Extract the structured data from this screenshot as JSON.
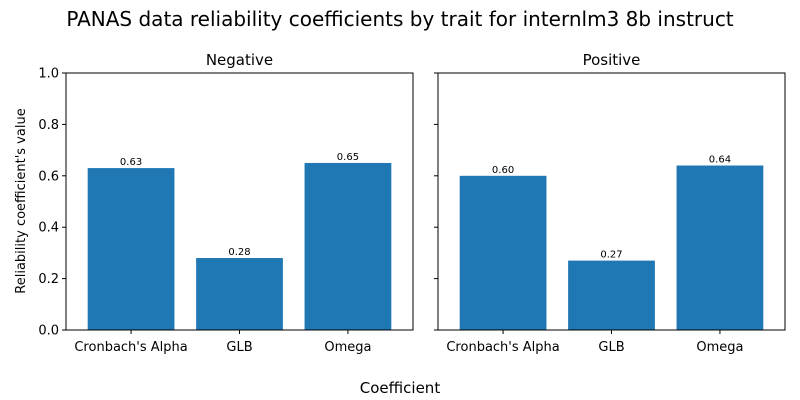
{
  "figure": {
    "title": "PANAS data reliability coefficients by trait for internlm3 8b instruct",
    "xlabel": "Coefficient",
    "ylabel": "Reliability coefficient's value"
  },
  "colors": {
    "bar": "#1f77b4",
    "axis": "#000000",
    "background": "#ffffff"
  },
  "chart_data": [
    {
      "type": "bar",
      "title": "Negative",
      "categories": [
        "Cronbach's Alpha",
        "GLB",
        "Omega"
      ],
      "values": [
        0.63,
        0.28,
        0.65
      ],
      "data_labels": [
        "0.63",
        "0.28",
        "0.65"
      ],
      "xlabel": "Coefficient",
      "ylabel": "Reliability coefficient's value",
      "ylim": [
        0,
        1
      ],
      "yticks": [
        "0.0",
        "0.2",
        "0.4",
        "0.6",
        "0.8",
        "1.0"
      ],
      "grid": false
    },
    {
      "type": "bar",
      "title": "Positive",
      "categories": [
        "Cronbach's Alpha",
        "GLB",
        "Omega"
      ],
      "values": [
        0.6,
        0.27,
        0.64
      ],
      "data_labels": [
        "0.60",
        "0.27",
        "0.64"
      ],
      "xlabel": "Coefficient",
      "ylabel": "",
      "ylim": [
        0,
        1
      ],
      "yticks": [
        "0.0",
        "0.2",
        "0.4",
        "0.6",
        "0.8",
        "1.0"
      ],
      "grid": false
    }
  ]
}
